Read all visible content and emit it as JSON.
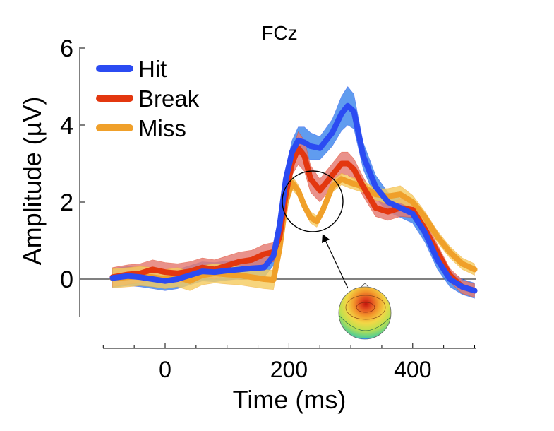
{
  "chart_data": {
    "type": "line",
    "title": "FCz",
    "xlabel": "Time (ms)",
    "ylabel": "Amplitude (µV)",
    "xlim": [
      -100,
      500
    ],
    "ylim": [
      -1,
      6
    ],
    "xticks": [
      0,
      200,
      400
    ],
    "yticks": [
      0,
      2,
      4,
      6
    ],
    "grid": false,
    "legend_position": "top-left",
    "colors": {
      "Hit": "#2b4bf2",
      "Hit_band": "#3d86ec",
      "Break": "#e3370f",
      "Break_band": "#e47a72",
      "Miss": "#f0a02a",
      "Miss_band": "#f5cc60"
    },
    "series": [
      {
        "name": "Hit",
        "x": [
          -85,
          -60,
          -40,
          -20,
          0,
          20,
          40,
          60,
          80,
          100,
          120,
          140,
          160,
          175,
          185,
          195,
          205,
          215,
          225,
          235,
          250,
          270,
          285,
          295,
          305,
          320,
          340,
          360,
          380,
          400,
          420,
          440,
          460,
          480,
          500
        ],
        "y": [
          0.03,
          0.08,
          0.05,
          0.0,
          -0.05,
          0.0,
          0.1,
          0.2,
          0.18,
          0.22,
          0.25,
          0.28,
          0.3,
          0.6,
          1.4,
          2.6,
          3.3,
          3.6,
          3.55,
          3.45,
          3.4,
          3.8,
          4.3,
          4.5,
          4.35,
          3.2,
          2.4,
          2.0,
          1.85,
          1.7,
          1.2,
          0.5,
          0.0,
          -0.2,
          -0.3
        ],
        "band": [
          0.5,
          0.5,
          0.5,
          0.5,
          0.5,
          0.5,
          0.5,
          0.5,
          0.5,
          0.5,
          0.5,
          0.5,
          0.5,
          0.5,
          0.5,
          0.5,
          0.6,
          0.7,
          0.8,
          0.7,
          0.6,
          0.7,
          0.9,
          1.0,
          0.9,
          0.7,
          0.6,
          0.5,
          0.5,
          0.5,
          0.5,
          0.5,
          0.4,
          0.4,
          0.4
        ]
      },
      {
        "name": "Break",
        "x": [
          -85,
          -60,
          -40,
          -20,
          0,
          20,
          40,
          60,
          80,
          100,
          120,
          140,
          160,
          175,
          185,
          195,
          205,
          215,
          225,
          235,
          250,
          270,
          285,
          295,
          305,
          320,
          340,
          360,
          380,
          400,
          420,
          440,
          460,
          480,
          500
        ],
        "y": [
          0.05,
          0.12,
          0.15,
          0.25,
          0.18,
          0.15,
          0.2,
          0.3,
          0.25,
          0.35,
          0.45,
          0.5,
          0.65,
          0.7,
          1.1,
          2.2,
          3.0,
          3.4,
          3.2,
          2.6,
          2.3,
          2.7,
          3.0,
          3.0,
          2.85,
          2.4,
          1.85,
          1.75,
          1.85,
          1.8,
          1.3,
          0.7,
          0.1,
          -0.2,
          -0.3
        ],
        "band": [
          0.5,
          0.5,
          0.5,
          0.5,
          0.5,
          0.5,
          0.5,
          0.5,
          0.5,
          0.5,
          0.5,
          0.5,
          0.5,
          0.5,
          0.5,
          0.5,
          0.6,
          0.85,
          0.8,
          0.7,
          0.6,
          0.6,
          0.6,
          0.6,
          0.55,
          0.5,
          0.45,
          0.45,
          0.45,
          0.4,
          0.4,
          0.4,
          0.35,
          0.35,
          0.35
        ]
      },
      {
        "name": "Miss",
        "x": [
          -85,
          -60,
          -40,
          -20,
          0,
          20,
          40,
          60,
          80,
          100,
          120,
          140,
          160,
          175,
          185,
          195,
          205,
          215,
          225,
          235,
          245,
          255,
          270,
          285,
          300,
          320,
          340,
          360,
          380,
          400,
          420,
          440,
          460,
          480,
          500
        ],
        "y": [
          0.02,
          0.05,
          0.08,
          0.05,
          0.0,
          0.05,
          -0.05,
          0.1,
          0.15,
          0.12,
          0.1,
          0.05,
          0.0,
          -0.02,
          0.8,
          2.0,
          2.5,
          2.3,
          1.9,
          1.6,
          1.5,
          1.8,
          2.4,
          2.6,
          2.5,
          2.4,
          2.2,
          2.15,
          2.2,
          2.0,
          1.6,
          1.1,
          0.7,
          0.4,
          0.25
        ],
        "band": [
          0.5,
          0.5,
          0.5,
          0.5,
          0.5,
          0.5,
          0.5,
          0.5,
          0.5,
          0.5,
          0.5,
          0.5,
          0.5,
          0.5,
          0.5,
          0.5,
          0.35,
          0.3,
          0.3,
          0.3,
          0.3,
          0.3,
          0.3,
          0.3,
          0.3,
          0.3,
          0.3,
          0.4,
          0.45,
          0.35,
          0.3,
          0.3,
          0.3,
          0.3,
          0.3
        ]
      }
    ]
  }
}
